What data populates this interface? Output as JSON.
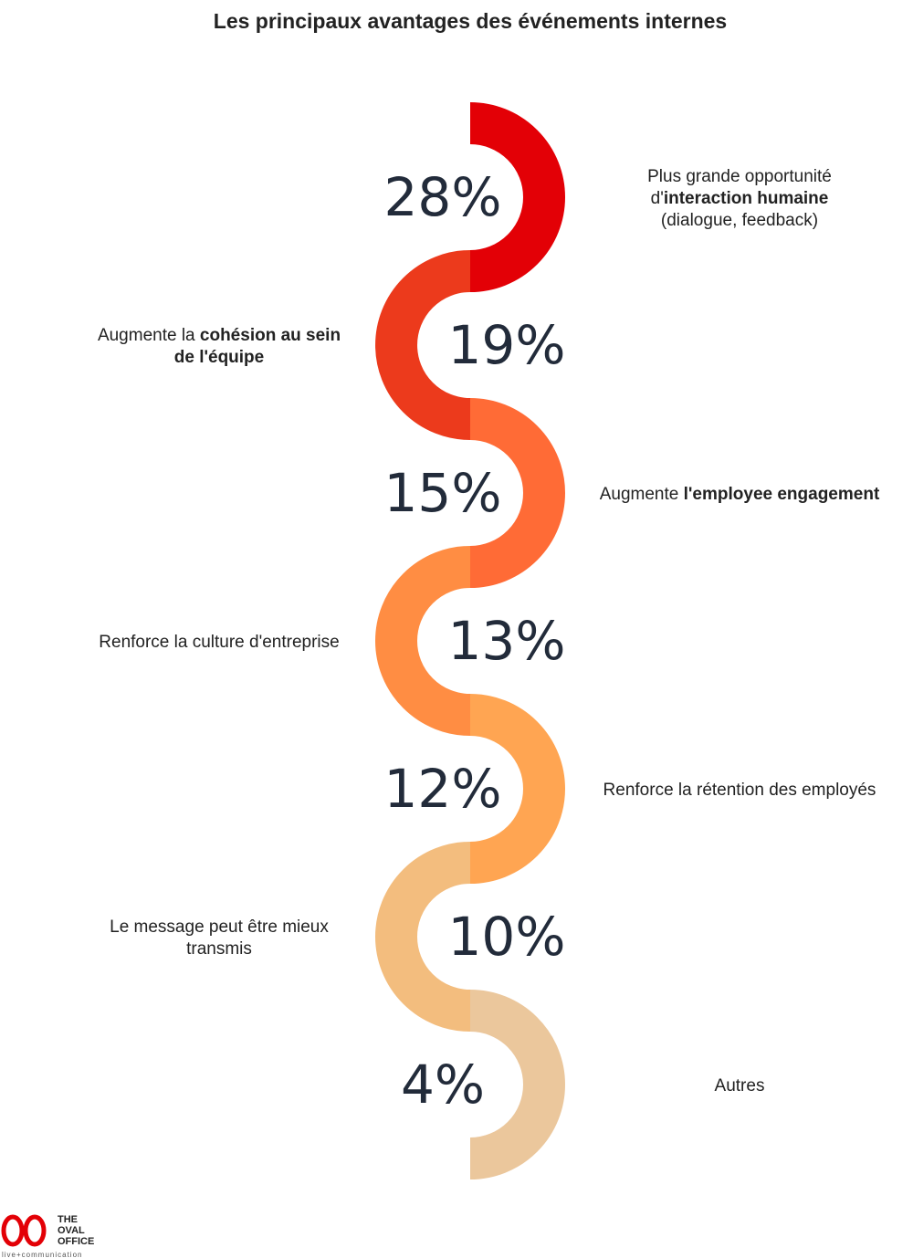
{
  "chart_data": {
    "type": "serpentine",
    "title": "Les principaux avantages des événements internes",
    "categories": [
      [
        [
          {
            "text": "Plus grande opportunité",
            "bold": false
          }
        ],
        [
          {
            "text": "d'",
            "bold": false
          },
          {
            "text": "interaction humaine",
            "bold": true
          }
        ],
        [
          {
            "text": "(dialogue, feedback)",
            "bold": false
          }
        ]
      ],
      [
        [
          {
            "text": "Augmente la ",
            "bold": false
          },
          {
            "text": "cohésion au sein",
            "bold": true
          }
        ],
        [
          {
            "text": "de l'équipe",
            "bold": true
          }
        ]
      ],
      [
        [
          {
            "text": "Augmente ",
            "bold": false
          },
          {
            "text": "l'employee engagement",
            "bold": true
          }
        ]
      ],
      [
        [
          {
            "text": "Renforce la culture d'entreprise",
            "bold": false
          }
        ]
      ],
      [
        [
          {
            "text": "Renforce la rétention des employés",
            "bold": false
          }
        ]
      ],
      [
        [
          {
            "text": "Le message peut être mieux",
            "bold": false
          }
        ],
        [
          {
            "text": "transmis",
            "bold": false
          }
        ]
      ],
      [
        [
          {
            "text": "Autres",
            "bold": false
          }
        ]
      ]
    ],
    "values": [
      28,
      19,
      15,
      13,
      12,
      10,
      4
    ],
    "value_labels": [
      "28%",
      "19%",
      "15%",
      "13%",
      "12%",
      "10%",
      "4%"
    ],
    "colors": [
      "#e30006",
      "#ec3a1c",
      "#ff6b36",
      "#ff8d43",
      "#ffa552",
      "#f3bd7e",
      "#ebc79c"
    ]
  },
  "logo": {
    "lines": [
      "THE",
      "OVAL",
      "OFFICE"
    ],
    "tagline": "live+communication"
  }
}
